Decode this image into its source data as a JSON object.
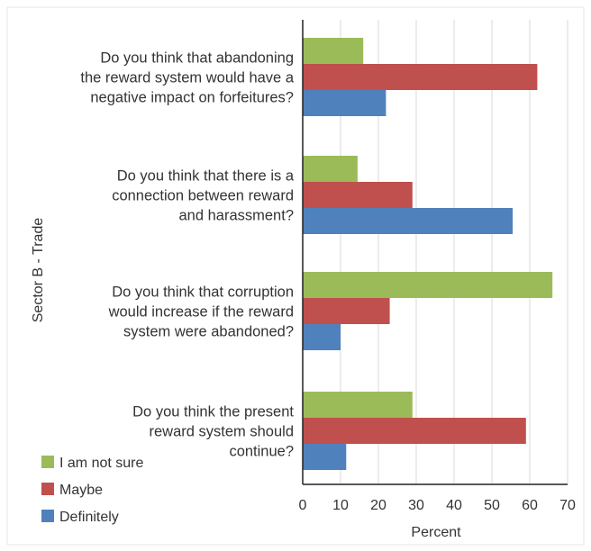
{
  "chart_data": {
    "type": "bar",
    "orientation": "horizontal",
    "ylabel": "Sector B - Trade",
    "xlabel": "Percent",
    "xlim": [
      0,
      70
    ],
    "xticks": [
      0,
      10,
      20,
      30,
      40,
      50,
      60,
      70
    ],
    "grid": true,
    "legend_position": "bottom-left",
    "categories": [
      [
        "Do you think that abandoning",
        "the reward system would have a",
        "negative impact on forfeitures?"
      ],
      [
        "Do you think that there is a",
        "connection between reward",
        "and harassment?"
      ],
      [
        "Do you think that corruption",
        "would increase if the reward",
        "system were abandoned?"
      ],
      [
        "Do you think the present",
        "reward system should",
        "continue?"
      ]
    ],
    "series": [
      {
        "name": "I am not sure",
        "color": "#9bbb59",
        "values": [
          16,
          14.5,
          66,
          29
        ]
      },
      {
        "name": "Maybe",
        "color": "#c0504d",
        "values": [
          62,
          29,
          23,
          59
        ]
      },
      {
        "name": "Definitely",
        "color": "#4f81bd",
        "values": [
          22,
          55.5,
          10,
          11.5
        ]
      }
    ]
  }
}
